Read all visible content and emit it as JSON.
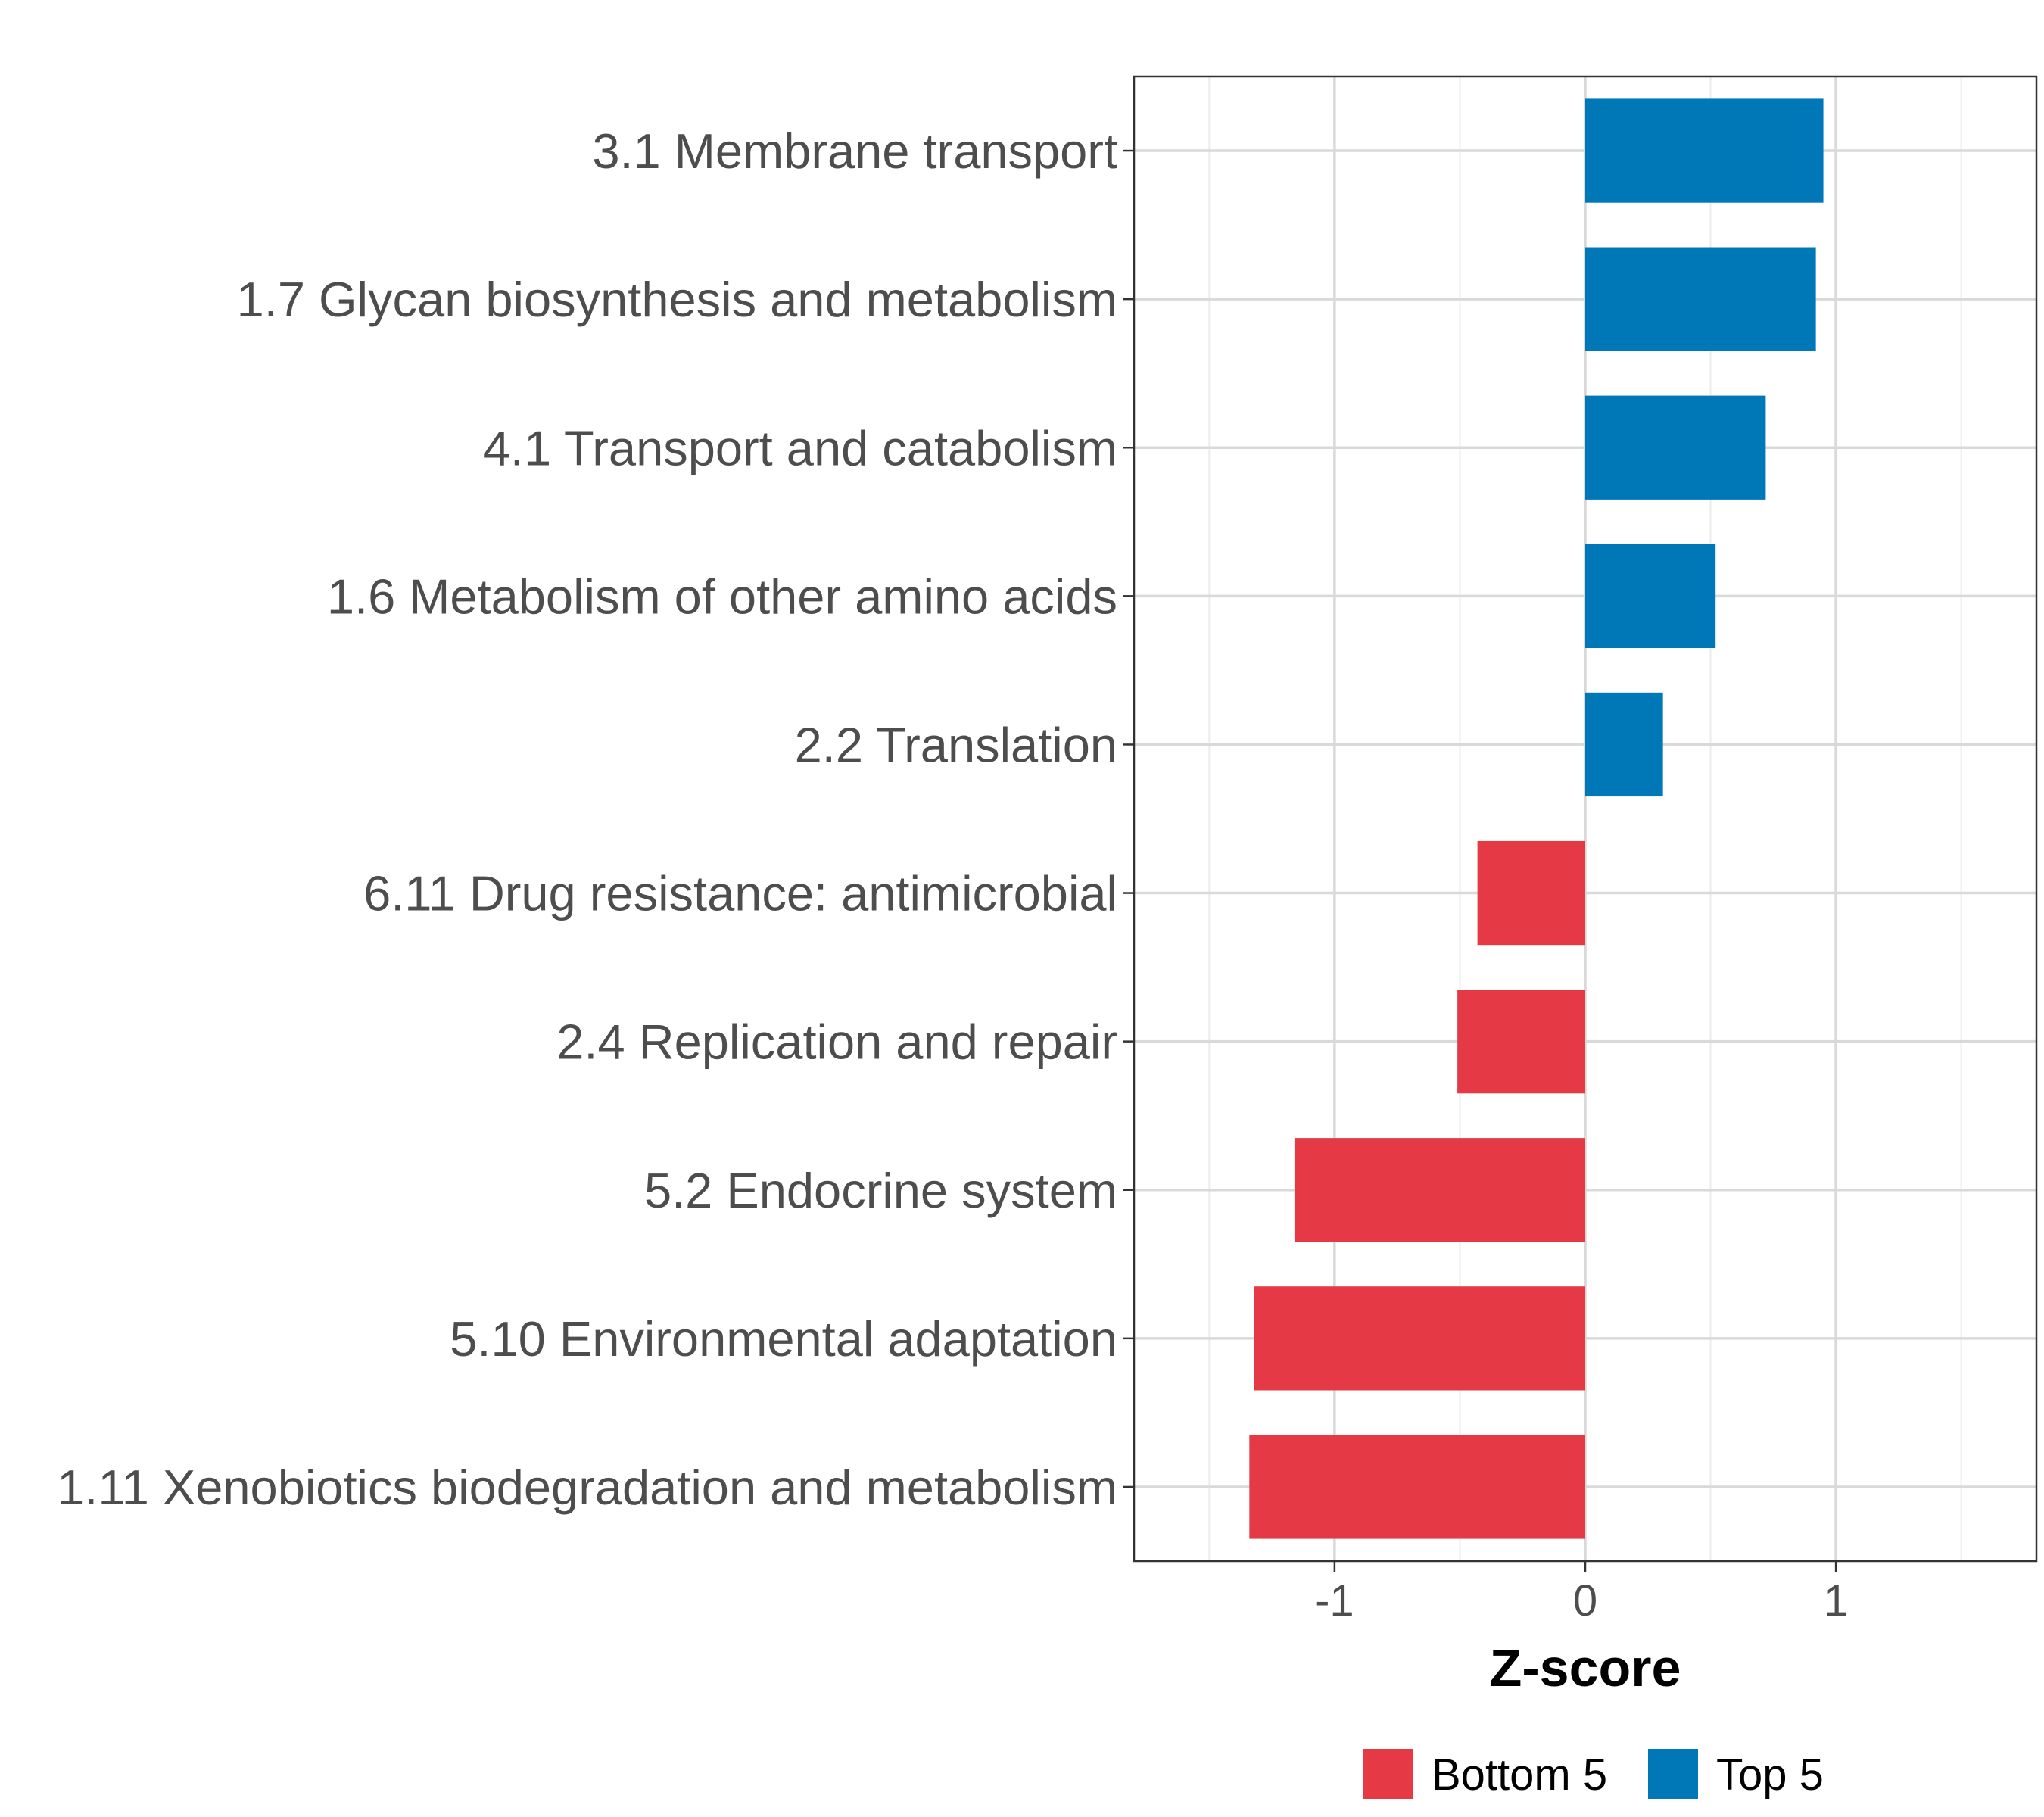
{
  "chart_data": {
    "type": "bar",
    "orientation": "horizontal",
    "title": "",
    "xlabel": "Z-score",
    "ylabel": "",
    "xlim": [
      -1.8,
      1.8
    ],
    "x_ticks": [
      -1,
      0,
      1
    ],
    "x_tick_labels": [
      "-1",
      "0",
      "1"
    ],
    "grid": true,
    "categories": [
      "3.1 Membrane transport",
      "1.7 Glycan biosynthesis and metabolism",
      "4.1 Transport and catabolism",
      "1.6 Metabolism of other amino acids",
      "2.2 Translation",
      "6.11 Drug resistance: antimicrobial",
      "2.4 Replication and repair",
      "5.2 Endocrine system",
      "5.10 Environmental adaptation",
      "1.11 Xenobiotics biodegradation and metabolism"
    ],
    "values": [
      0.95,
      0.92,
      0.72,
      0.52,
      0.31,
      -0.43,
      -0.51,
      -1.16,
      -1.32,
      -1.34
    ],
    "groups": [
      "Top 5",
      "Top 5",
      "Top 5",
      "Top 5",
      "Top 5",
      "Bottom 5",
      "Bottom 5",
      "Bottom 5",
      "Bottom 5",
      "Bottom 5"
    ],
    "legend": {
      "position": "bottom",
      "entries": [
        {
          "name": "Bottom 5",
          "color": "#e63946"
        },
        {
          "name": "Top 5",
          "color": "#0077b6"
        }
      ]
    }
  }
}
